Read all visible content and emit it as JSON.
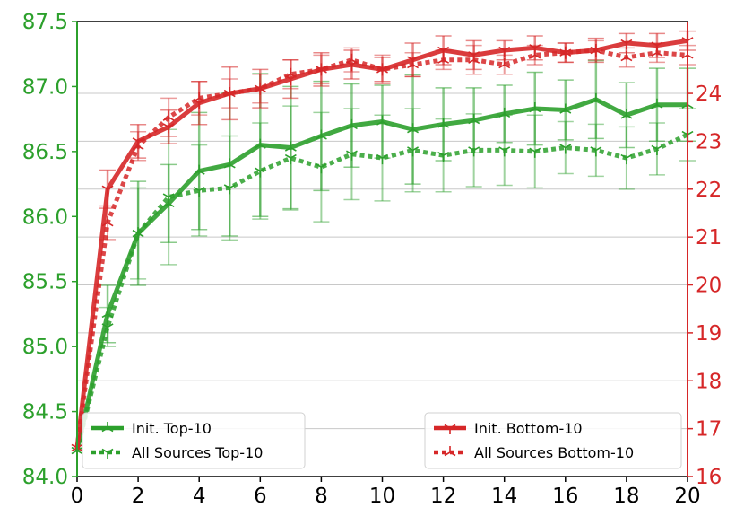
{
  "chart_data": {
    "type": "line",
    "title": "",
    "xlabel": "",
    "ylabel": "",
    "x": [
      0,
      1,
      2,
      3,
      4,
      5,
      6,
      7,
      8,
      9,
      10,
      11,
      12,
      13,
      14,
      15,
      16,
      17,
      18,
      19,
      20
    ],
    "xlim": [
      0,
      20
    ],
    "x_ticks": [
      "0",
      "2",
      "4",
      "6",
      "8",
      "10",
      "12",
      "14",
      "16",
      "18",
      "20"
    ],
    "y_left": {
      "lim": [
        84.0,
        87.5
      ],
      "ticks": [
        "84.0",
        "84.5",
        "85.0",
        "85.5",
        "86.0",
        "86.5",
        "87.0",
        "87.5"
      ],
      "color": "#2ca02c"
    },
    "y_right": {
      "lim": [
        16,
        25.5
      ],
      "ticks": [
        "16",
        "17",
        "18",
        "19",
        "20",
        "21",
        "22",
        "23",
        "24"
      ],
      "color": "#d62728"
    },
    "grid": "horizontal (right axis)",
    "series": [
      {
        "name": "Init. Top-10",
        "axis": "left",
        "color": "#2ca02c",
        "style": "solid",
        "marker": "tri-up",
        "values": [
          84.2,
          85.25,
          85.87,
          86.1,
          86.35,
          86.4,
          86.55,
          86.53,
          86.62,
          86.7,
          86.73,
          86.67,
          86.71,
          86.74,
          86.79,
          86.83,
          86.82,
          86.9,
          86.78,
          86.86,
          86.86
        ],
        "errors": [
          0,
          0.22,
          0.4,
          0.3,
          0.45,
          0.55,
          0.55,
          0.47,
          0.42,
          0.32,
          0.28,
          0.42,
          0.28,
          0.25,
          0.22,
          0.28,
          0.23,
          0.3,
          0.25,
          0.28,
          0.28
        ]
      },
      {
        "name": "All Sources Top-10",
        "axis": "left",
        "color": "#2ca02c",
        "style": "dotted",
        "marker": "tri-down",
        "values": [
          84.2,
          85.15,
          85.87,
          86.15,
          86.2,
          86.22,
          86.35,
          86.45,
          86.38,
          86.48,
          86.45,
          86.51,
          86.47,
          86.51,
          86.51,
          86.5,
          86.53,
          86.51,
          86.45,
          86.52,
          86.63
        ],
        "errors": [
          0,
          0.15,
          0.35,
          0.52,
          0.35,
          0.4,
          0.37,
          0.4,
          0.42,
          0.35,
          0.33,
          0.32,
          0.28,
          0.28,
          0.27,
          0.28,
          0.2,
          0.2,
          0.24,
          0.2,
          0.2
        ]
      },
      {
        "name": "Init. Bottom-10",
        "axis": "right",
        "color": "#d62728",
        "style": "solid",
        "marker": "tri-down",
        "values": [
          16.6,
          22.0,
          23.0,
          23.3,
          23.8,
          24.0,
          24.1,
          24.3,
          24.5,
          24.6,
          24.5,
          24.7,
          24.9,
          24.8,
          24.9,
          24.95,
          24.85,
          24.9,
          25.05,
          25.0,
          25.1
        ],
        "errors": [
          0,
          0.4,
          0.35,
          0.35,
          0.45,
          0.55,
          0.4,
          0.4,
          0.35,
          0.3,
          0.25,
          0.35,
          0.3,
          0.3,
          0.2,
          0.25,
          0.2,
          0.25,
          0.2,
          0.25,
          0.2
        ]
      },
      {
        "name": "All Sources Bottom-10",
        "axis": "right",
        "color": "#d62728",
        "style": "dotted",
        "marker": "tri-up",
        "values": [
          16.6,
          21.3,
          22.9,
          23.5,
          23.9,
          24.0,
          24.1,
          24.4,
          24.5,
          24.7,
          24.5,
          24.6,
          24.7,
          24.7,
          24.6,
          24.8,
          24.85,
          24.9,
          24.75,
          24.85,
          24.8
        ],
        "errors": [
          0,
          0.35,
          0.3,
          0.4,
          0.35,
          0.3,
          0.3,
          0.3,
          0.3,
          0.25,
          0.3,
          0.25,
          0.2,
          0.3,
          0.2,
          0.2,
          0.2,
          0.2,
          0.2,
          0.2,
          0.2
        ]
      }
    ],
    "legends": [
      {
        "placement": "lower-left",
        "entries": [
          "Init. Top-10",
          "All Sources Top-10"
        ]
      },
      {
        "placement": "lower-right",
        "entries": [
          "Init. Bottom-10",
          "All Sources Bottom-10"
        ]
      }
    ]
  }
}
